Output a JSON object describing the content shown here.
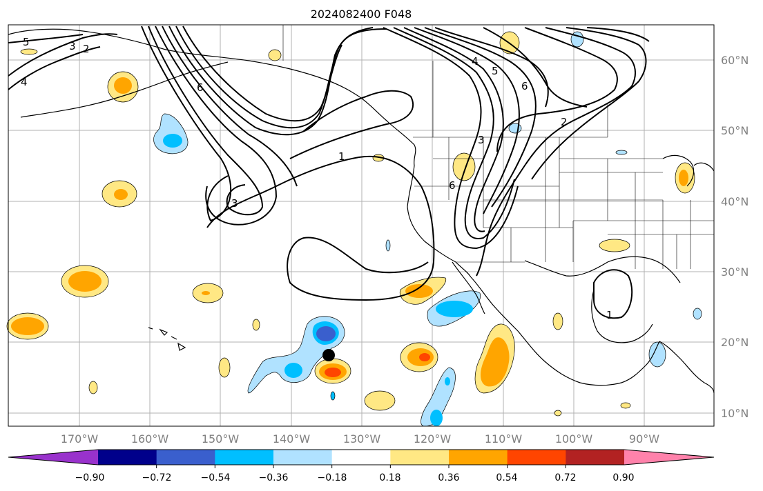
{
  "title": "2024082400 F048",
  "map": {
    "lon_labels": [
      "170°W",
      "160°W",
      "150°W",
      "140°W",
      "130°W",
      "120°W",
      "110°W",
      "100°W",
      "90°W"
    ],
    "lat_labels": [
      "60°N",
      "50°N",
      "40°N",
      "30°N",
      "20°N",
      "10°N"
    ],
    "contour_labels": [
      "5",
      "3",
      "2",
      "4",
      "6",
      "1",
      "3",
      "4",
      "5",
      "6",
      "2",
      "3",
      "6",
      "1"
    ],
    "marker": "storm center (black dot)"
  },
  "colorbar": {
    "ticks": [
      "−0.90",
      "−0.72",
      "−0.54",
      "−0.36",
      "−0.18",
      "0.18",
      "0.36",
      "0.54",
      "0.72",
      "0.90"
    ],
    "colors": [
      "#9932cc",
      "#00008b",
      "#3a5fcd",
      "#00bfff",
      "#b0e2ff",
      "#ffffff",
      "#ffe884",
      "#ffa500",
      "#ff4500",
      "#b22222",
      "#ff82ab"
    ]
  }
}
